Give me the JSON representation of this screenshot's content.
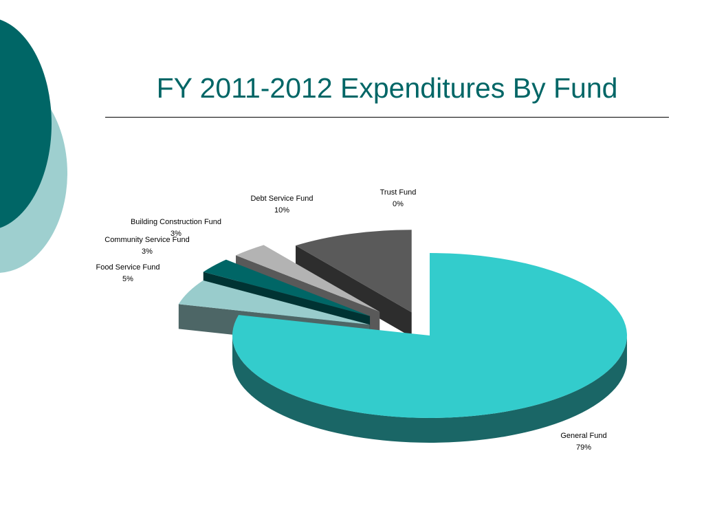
{
  "slide": {
    "title": "FY 2011-2012 Expenditures By Fund"
  },
  "colors": {
    "title": "#006666",
    "deco_dark": "#006666",
    "deco_light": "#9ecfcf"
  },
  "chart_data": {
    "type": "pie",
    "style": "3d-exploded",
    "title": "",
    "slices": [
      {
        "label": "General Fund",
        "value": 79,
        "pct_label": "79%",
        "top": "#33cccc",
        "side": "#1a6666"
      },
      {
        "label": "Food Service Fund",
        "value": 5,
        "pct_label": "5%",
        "top": "#99cccc",
        "side": "#4d6666"
      },
      {
        "label": "Community Service Fund",
        "value": 3,
        "pct_label": "3%",
        "top": "#006666",
        "side": "#003333"
      },
      {
        "label": "Building Construction Fund",
        "value": 3,
        "pct_label": "3%",
        "top": "#b3b3b3",
        "side": "#595959"
      },
      {
        "label": "Debt Service Fund",
        "value": 10,
        "pct_label": "10%",
        "top": "#5a5a5a",
        "side": "#2d2d2d"
      },
      {
        "label": "Trust Fund",
        "value": 0,
        "pct_label": "0%",
        "top": "#ffffff",
        "side": "#cccccc"
      }
    ],
    "legend": "none",
    "data_labels": "outside"
  }
}
